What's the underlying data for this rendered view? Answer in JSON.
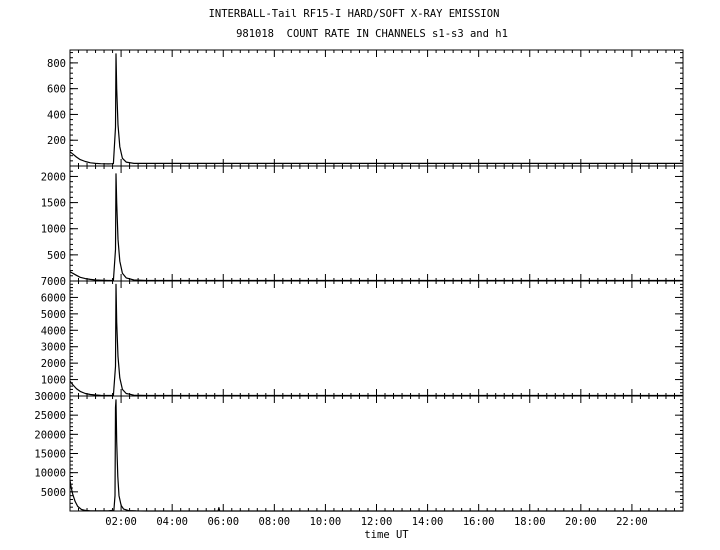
{
  "title_line1": "INTERBALL-Tail RF15-I HARD/SOFT X-RAY EMISSION",
  "title_line2": "981018  COUNT RATE IN CHANNELS s1-s3 and h1",
  "chart_data": [
    {
      "type": "line",
      "panel": "s1",
      "x_unit": "hours UT",
      "ylim": [
        0,
        900
      ],
      "yticks": [
        200,
        400,
        600,
        800
      ],
      "series": [
        {
          "x": [
            0.0,
            0.1,
            0.25,
            0.4,
            0.6,
            0.8,
            1.0,
            1.2,
            1.5,
            1.7,
            1.78,
            1.8,
            1.83,
            1.88,
            1.95,
            2.05,
            2.2,
            2.5,
            3.0,
            24.0
          ],
          "y": [
            110,
            95,
            70,
            50,
            35,
            25,
            20,
            18,
            16,
            18,
            300,
            870,
            600,
            320,
            150,
            60,
            30,
            20,
            20,
            20
          ]
        }
      ]
    },
    {
      "type": "line",
      "panel": "s2",
      "x_unit": "hours UT",
      "ylim": [
        0,
        2200
      ],
      "yticks": [
        500,
        1000,
        1500,
        2000
      ],
      "series": [
        {
          "x": [
            0.0,
            0.1,
            0.25,
            0.4,
            0.6,
            0.8,
            1.0,
            1.2,
            1.5,
            1.7,
            1.78,
            1.8,
            1.83,
            1.88,
            1.95,
            2.05,
            2.2,
            2.5,
            3.0,
            24.0
          ],
          "y": [
            180,
            150,
            110,
            70,
            45,
            30,
            20,
            15,
            10,
            12,
            600,
            2050,
            1500,
            800,
            380,
            150,
            60,
            20,
            10,
            10
          ]
        }
      ]
    },
    {
      "type": "line",
      "panel": "s3",
      "x_unit": "hours UT",
      "ylim": [
        0,
        7000
      ],
      "yticks": [
        1000,
        2000,
        3000,
        4000,
        5000,
        6000,
        7000
      ],
      "series": [
        {
          "x": [
            0.0,
            0.1,
            0.25,
            0.4,
            0.6,
            0.8,
            1.0,
            1.2,
            1.5,
            1.7,
            1.78,
            1.8,
            1.83,
            1.88,
            1.95,
            2.05,
            2.2,
            2.5,
            3.0,
            24.0
          ],
          "y": [
            900,
            700,
            450,
            280,
            150,
            90,
            60,
            40,
            30,
            40,
            1800,
            6800,
            4500,
            2400,
            1100,
            400,
            150,
            50,
            30,
            30
          ]
        }
      ]
    },
    {
      "type": "line",
      "panel": "h1",
      "x_unit": "hours UT",
      "xlabel": "time UT",
      "xticks": [
        "02:00",
        "04:00",
        "06:00",
        "08:00",
        "10:00",
        "12:00",
        "14:00",
        "16:00",
        "18:00",
        "20:00",
        "22:00"
      ],
      "xtick_hours": [
        2,
        4,
        6,
        8,
        10,
        12,
        14,
        16,
        18,
        20,
        22
      ],
      "xlim": [
        0,
        24
      ],
      "ylim": [
        0,
        30000
      ],
      "yticks": [
        5000,
        10000,
        15000,
        20000,
        25000,
        30000
      ],
      "series": [
        {
          "x": [
            0.0,
            0.05,
            0.1,
            0.2,
            0.3,
            0.45,
            0.6,
            0.8,
            1.0,
            1.5,
            1.72,
            1.76,
            1.78,
            1.8,
            1.83,
            1.87,
            1.92,
            2.0,
            2.1,
            2.3,
            2.6,
            3.0,
            5.8,
            5.83,
            5.86,
            24.0
          ],
          "y": [
            8000,
            6000,
            4500,
            2500,
            1200,
            400,
            150,
            60,
            30,
            20,
            200,
            4000,
            27000,
            29000,
            18000,
            9000,
            4000,
            1500,
            500,
            100,
            20,
            10,
            10,
            900,
            10,
            10
          ]
        }
      ]
    }
  ]
}
